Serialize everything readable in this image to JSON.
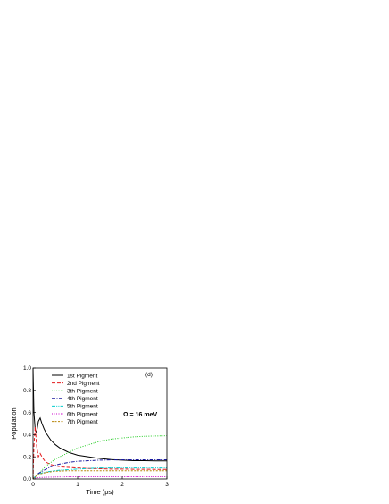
{
  "chart_data": {
    "type": "line",
    "panel_label": "(d)",
    "annotation": "Ω = 16 meV",
    "xlabel": "Time (ps)",
    "ylabel": "Population",
    "xlim": [
      0,
      3
    ],
    "ylim": [
      0,
      1.0
    ],
    "x_ticks": [
      0,
      1,
      2,
      3
    ],
    "y_ticks": [
      0.0,
      0.2,
      0.4,
      0.6,
      0.8,
      1.0
    ],
    "x_tick_labels": [
      "0",
      "1",
      "2",
      "3"
    ],
    "y_tick_labels": [
      "0.0",
      "0.2",
      "0.4",
      "0.6",
      "0.8",
      "1.0"
    ],
    "grid": false,
    "legend_position": "top-left",
    "x": [
      0,
      0.02,
      0.05,
      0.08,
      0.12,
      0.16,
      0.2,
      0.25,
      0.3,
      0.4,
      0.5,
      0.6,
      0.8,
      1.0,
      1.25,
      1.5,
      1.75,
      2.0,
      2.25,
      2.5,
      2.75,
      3.0
    ],
    "series": [
      {
        "name": "1st Pigment",
        "color": "#000000",
        "dash": "solid",
        "values": [
          1.0,
          0.6,
          0.44,
          0.42,
          0.52,
          0.55,
          0.5,
          0.45,
          0.41,
          0.35,
          0.31,
          0.28,
          0.24,
          0.215,
          0.2,
          0.185,
          0.175,
          0.17,
          0.165,
          0.165,
          0.163,
          0.163
        ]
      },
      {
        "name": "2nd Pigment",
        "color": "#e41a1c",
        "dash": "dash",
        "values": [
          0.0,
          0.3,
          0.47,
          0.3,
          0.2,
          0.23,
          0.2,
          0.17,
          0.15,
          0.13,
          0.12,
          0.11,
          0.105,
          0.1,
          0.095,
          0.093,
          0.09,
          0.09,
          0.088,
          0.088,
          0.087,
          0.087
        ]
      },
      {
        "name": "3th Pigment",
        "color": "#22cc22",
        "dash": "dot",
        "values": [
          0.0,
          0.005,
          0.01,
          0.02,
          0.04,
          0.06,
          0.08,
          0.1,
          0.12,
          0.15,
          0.18,
          0.2,
          0.24,
          0.28,
          0.31,
          0.34,
          0.36,
          0.37,
          0.38,
          0.385,
          0.388,
          0.39
        ]
      },
      {
        "name": "4th Pigment",
        "color": "#1a1a9e",
        "dash": "dashdot",
        "values": [
          0.0,
          0.01,
          0.02,
          0.03,
          0.05,
          0.06,
          0.07,
          0.08,
          0.09,
          0.11,
          0.125,
          0.135,
          0.15,
          0.16,
          0.165,
          0.17,
          0.172,
          0.173,
          0.173,
          0.173,
          0.173,
          0.173
        ]
      },
      {
        "name": "5th Pigment",
        "color": "#00cccc",
        "dash": "dashdotdot",
        "values": [
          0.0,
          0.01,
          0.02,
          0.03,
          0.04,
          0.05,
          0.055,
          0.06,
          0.065,
          0.07,
          0.075,
          0.08,
          0.085,
          0.09,
          0.095,
          0.1,
          0.1,
          0.1,
          0.1,
          0.1,
          0.1,
          0.1
        ]
      },
      {
        "name": "6th Pigment",
        "color": "#cc00cc",
        "dash": "dot",
        "values": [
          0.0,
          0.005,
          0.008,
          0.01,
          0.012,
          0.013,
          0.014,
          0.015,
          0.016,
          0.017,
          0.018,
          0.019,
          0.02,
          0.02,
          0.02,
          0.02,
          0.02,
          0.02,
          0.02,
          0.02,
          0.02,
          0.02
        ]
      },
      {
        "name": "7th Pigment",
        "color": "#b8860b",
        "dash": "shortdash",
        "values": [
          0.0,
          0.01,
          0.02,
          0.03,
          0.04,
          0.045,
          0.05,
          0.055,
          0.06,
          0.065,
          0.07,
          0.072,
          0.075,
          0.075,
          0.075,
          0.075,
          0.075,
          0.075,
          0.075,
          0.075,
          0.075,
          0.075
        ]
      }
    ]
  }
}
